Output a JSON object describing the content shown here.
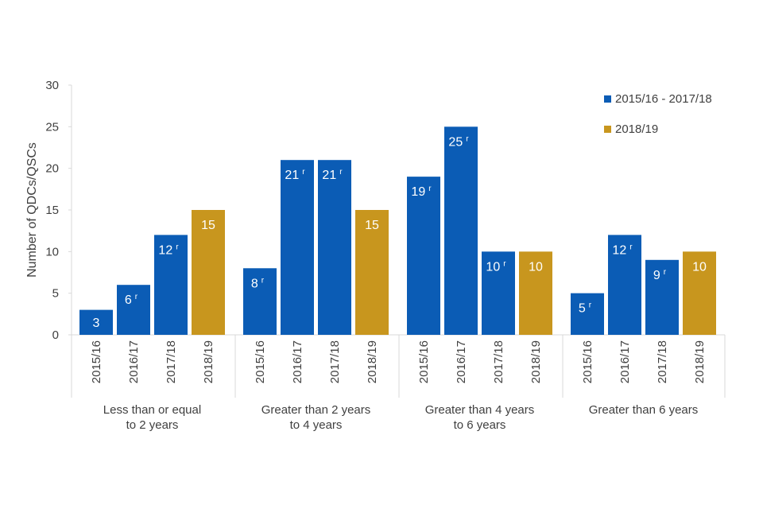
{
  "chart_data": {
    "type": "bar",
    "ylabel": "Number of QDCs/QSCs",
    "ylim": [
      0,
      30
    ],
    "yticks": [
      0,
      5,
      10,
      15,
      20,
      25,
      30
    ],
    "grid": false,
    "legend": {
      "placement": "top-right",
      "entries": [
        {
          "label": "2015/16 - 2017/18",
          "color": "#0b5cb5"
        },
        {
          "label": "2018/19",
          "color": "#c8961e"
        }
      ]
    },
    "groups": [
      {
        "label_lines": [
          "Less than or equal",
          "to 2 years"
        ],
        "bars": [
          {
            "x": "2015/16",
            "value": 3,
            "label": "3",
            "revised": false,
            "series": 0
          },
          {
            "x": "2016/17",
            "value": 6,
            "label": "6",
            "revised": true,
            "series": 0
          },
          {
            "x": "2017/18",
            "value": 12,
            "label": "12",
            "revised": true,
            "series": 0
          },
          {
            "x": "2018/19",
            "value": 15,
            "label": "15",
            "revised": false,
            "series": 1
          }
        ]
      },
      {
        "label_lines": [
          "Greater than 2 years",
          "to 4 years"
        ],
        "bars": [
          {
            "x": "2015/16",
            "value": 8,
            "label": "8",
            "revised": true,
            "series": 0
          },
          {
            "x": "2016/17",
            "value": 21,
            "label": "21",
            "revised": true,
            "series": 0
          },
          {
            "x": "2017/18",
            "value": 21,
            "label": "21",
            "revised": true,
            "series": 0
          },
          {
            "x": "2018/19",
            "value": 15,
            "label": "15",
            "revised": false,
            "series": 1
          }
        ]
      },
      {
        "label_lines": [
          "Greater than 4 years",
          "to  6 years"
        ],
        "bars": [
          {
            "x": "2015/16",
            "value": 19,
            "label": "19",
            "revised": true,
            "series": 0
          },
          {
            "x": "2016/17",
            "value": 25,
            "label": "25",
            "revised": true,
            "series": 0
          },
          {
            "x": "2017/18",
            "value": 10,
            "label": "10",
            "revised": true,
            "series": 0
          },
          {
            "x": "2018/19",
            "value": 10,
            "label": "10",
            "revised": false,
            "series": 1
          }
        ]
      },
      {
        "label_lines": [
          "Greater than 6 years"
        ],
        "bars": [
          {
            "x": "2015/16",
            "value": 5,
            "label": "5",
            "revised": true,
            "series": 0
          },
          {
            "x": "2016/17",
            "value": 12,
            "label": "12",
            "revised": true,
            "series": 0
          },
          {
            "x": "2017/18",
            "value": 9,
            "label": "9",
            "revised": true,
            "series": 0
          },
          {
            "x": "2018/19",
            "value": 10,
            "label": "10",
            "revised": false,
            "series": 1
          }
        ]
      }
    ],
    "revised_marker": "r"
  }
}
